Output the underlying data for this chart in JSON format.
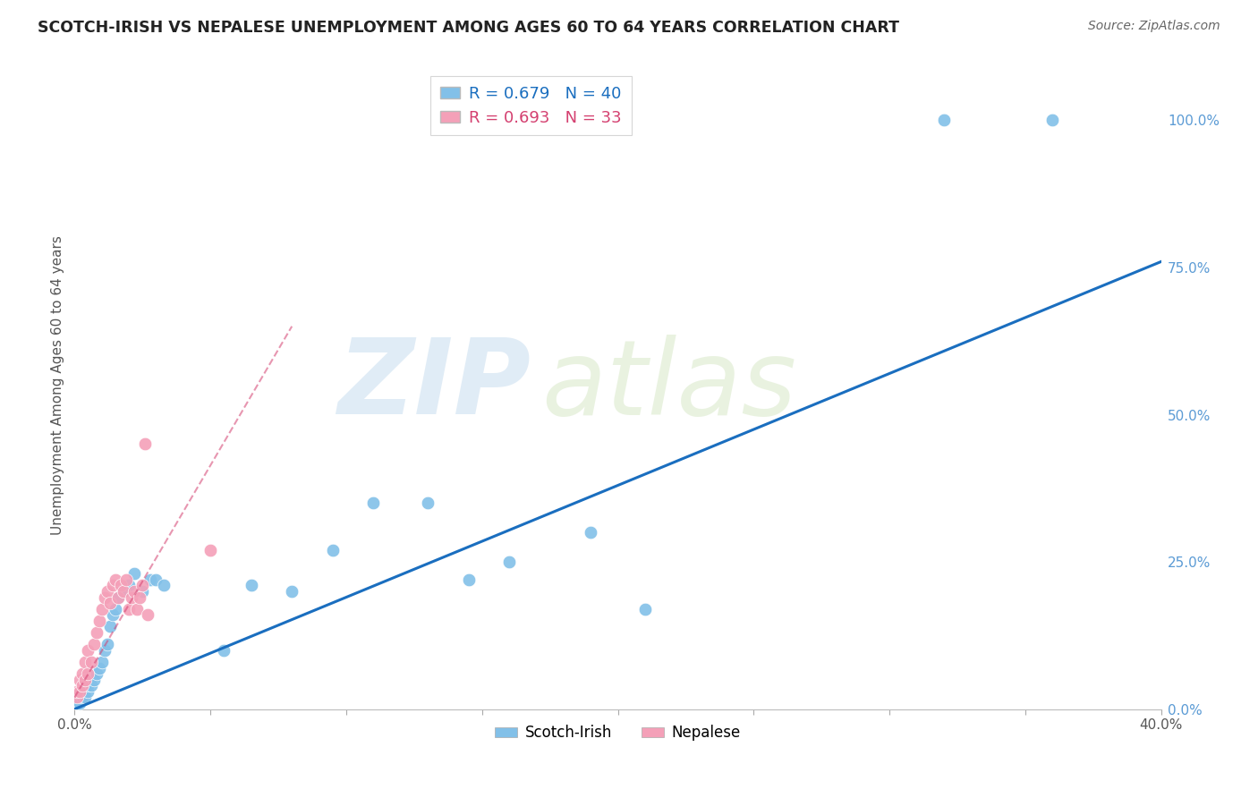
{
  "title": "SCOTCH-IRISH VS NEPALESE UNEMPLOYMENT AMONG AGES 60 TO 64 YEARS CORRELATION CHART",
  "source": "Source: ZipAtlas.com",
  "ylabel": "Unemployment Among Ages 60 to 64 years",
  "xlim": [
    0.0,
    0.4
  ],
  "ylim": [
    0.0,
    1.1
  ],
  "x_ticks": [
    0.0,
    0.05,
    0.1,
    0.15,
    0.2,
    0.25,
    0.3,
    0.35,
    0.4
  ],
  "x_tick_labels": [
    "0.0%",
    "",
    "",
    "",
    "",
    "",
    "",
    "",
    "40.0%"
  ],
  "y_ticks_right": [
    0.0,
    0.25,
    0.5,
    0.75,
    1.0
  ],
  "y_tick_labels_right": [
    "0.0%",
    "25.0%",
    "50.0%",
    "75.0%",
    "100.0%"
  ],
  "scotch_irish_color": "#82C0E8",
  "nepalese_color": "#F4A0B8",
  "scotch_irish_line_color": "#1A6EBF",
  "nepalese_line_color": "#D44070",
  "scotch_irish_R": 0.679,
  "scotch_irish_N": 40,
  "nepalese_R": 0.693,
  "nepalese_N": 33,
  "watermark_zip": "ZIP",
  "watermark_atlas": "atlas",
  "background_color": "#FFFFFF",
  "grid_color": "#E0E0E0",
  "si_line_x0": 0.0,
  "si_line_y0": 0.0,
  "si_line_x1": 0.4,
  "si_line_y1": 0.76,
  "np_line_x0": 0.0,
  "np_line_y0": 0.02,
  "np_line_x1": 0.08,
  "np_line_y1": 0.65,
  "scotch_irish_x": [
    0.001,
    0.001,
    0.002,
    0.002,
    0.003,
    0.003,
    0.004,
    0.004,
    0.005,
    0.005,
    0.006,
    0.007,
    0.008,
    0.009,
    0.01,
    0.011,
    0.012,
    0.013,
    0.014,
    0.015,
    0.016,
    0.018,
    0.02,
    0.022,
    0.025,
    0.028,
    0.03,
    0.033,
    0.055,
    0.065,
    0.08,
    0.095,
    0.11,
    0.13,
    0.145,
    0.16,
    0.19,
    0.21,
    0.32,
    0.36
  ],
  "scotch_irish_y": [
    0.01,
    0.02,
    0.01,
    0.03,
    0.02,
    0.03,
    0.02,
    0.04,
    0.03,
    0.04,
    0.04,
    0.05,
    0.06,
    0.07,
    0.08,
    0.1,
    0.11,
    0.14,
    0.16,
    0.17,
    0.19,
    0.2,
    0.21,
    0.23,
    0.2,
    0.22,
    0.22,
    0.21,
    0.1,
    0.21,
    0.2,
    0.27,
    0.35,
    0.35,
    0.22,
    0.25,
    0.3,
    0.17,
    1.0,
    1.0
  ],
  "nepalese_x": [
    0.001,
    0.001,
    0.002,
    0.002,
    0.003,
    0.003,
    0.004,
    0.004,
    0.005,
    0.005,
    0.006,
    0.007,
    0.008,
    0.009,
    0.01,
    0.011,
    0.012,
    0.013,
    0.014,
    0.015,
    0.016,
    0.017,
    0.018,
    0.019,
    0.02,
    0.021,
    0.022,
    0.023,
    0.024,
    0.025,
    0.026,
    0.027,
    0.05
  ],
  "nepalese_y": [
    0.02,
    0.03,
    0.03,
    0.05,
    0.04,
    0.06,
    0.05,
    0.08,
    0.06,
    0.1,
    0.08,
    0.11,
    0.13,
    0.15,
    0.17,
    0.19,
    0.2,
    0.18,
    0.21,
    0.22,
    0.19,
    0.21,
    0.2,
    0.22,
    0.17,
    0.19,
    0.2,
    0.17,
    0.19,
    0.21,
    0.45,
    0.16,
    0.27
  ]
}
